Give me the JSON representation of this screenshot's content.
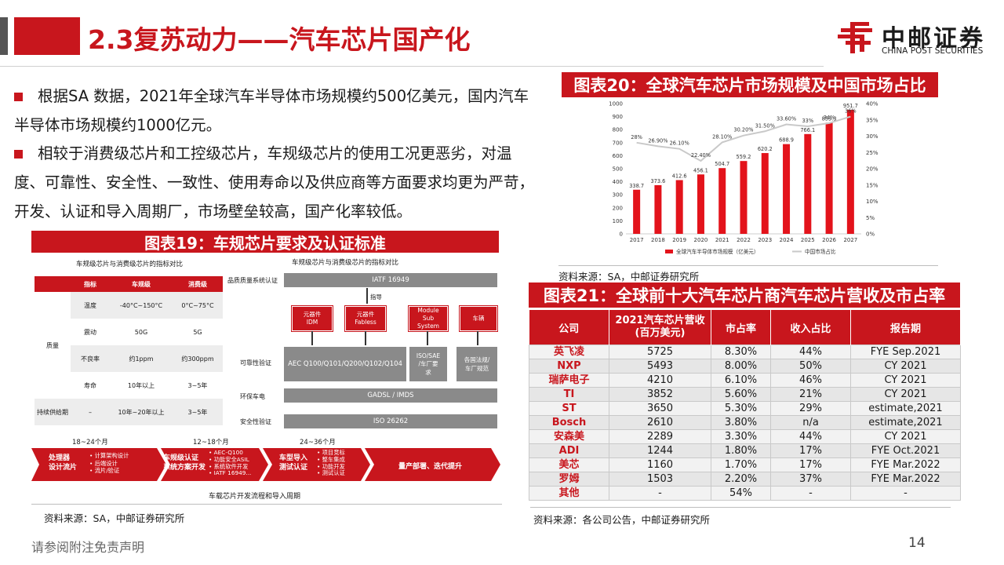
{
  "header": {
    "title": "2.3复苏动力——汽车芯片国产化",
    "logo_cn": "中邮证券",
    "logo_en": "CHINA POST SECURITIES"
  },
  "bullets": [
    "根据SA 数据，2021年全球汽车半导体市场规模约500亿美元，国内汽车半导体市场规模约1000亿元。",
    "相较于消费级芯片和工控级芯片，车规级芯片的使用工况更恶劣，对温度、可靠性、安全性、一致性、使用寿命以及供应商等方面要求均更为严苛，开发、认证和导入周期厂，市场壁垒较高，国产化率较低。"
  ],
  "fig19": {
    "title": "图表19：车规芯片要求及认证标准",
    "table_caption": "车规级芯片与消费级芯片的指标对比",
    "table_headers": [
      "指标",
      "车规级",
      "消费级"
    ],
    "quality_label": "质量",
    "supply_label": "持续供给期",
    "rows": [
      {
        "metric": "温度",
        "auto": "-40°C~150°C",
        "consumer": "0°C~75°C"
      },
      {
        "metric": "震动",
        "auto": "50G",
        "consumer": "5G"
      },
      {
        "metric": "不良率",
        "auto": "约1ppm",
        "consumer": "约300ppm"
      },
      {
        "metric": "寿命",
        "auto": "10年以上",
        "consumer": "3~5年"
      },
      {
        "metric": "–",
        "auto": "10年~20年以上",
        "consumer": "3~5年"
      }
    ],
    "diagram_caption": "车规级芯片与消费级芯片的指标对比",
    "diagram": {
      "label_quality_sys": "品质质量系统认证",
      "iatf": "IATF 16949",
      "guide": "指导",
      "idm": "元器件\nIDM",
      "fabless": "元器件\nFabless",
      "module": "Module\nSub\nSystem",
      "vehicle": "车辆",
      "label_reliability": "可靠性验证",
      "aec": "AEC Q100/Q101/Q200/Q102/Q104",
      "iso_sae": "ISO/SAE\n/车厂要\n求",
      "local_regs": "各国法规/\n车厂规范",
      "label_env": "环保车电",
      "gadsl": "GADSL / IMDS",
      "label_safety": "安全性验证",
      "iso26262": "ISO 26262"
    },
    "timeline": {
      "p1": "18~24个月",
      "p2": "12~18个月",
      "p3": "24~36个月",
      "s1": "处理器\n设计流片",
      "s1_items": [
        "• 计算架构设计",
        "• 后端设计",
        "• 流片/验证"
      ],
      "s2": "车规级认证\n系统方案开发",
      "s2_items": [
        "• AEC-Q100",
        "• 功能安全ASIL",
        "• 系统软件开发",
        "• IATF 16949..."
      ],
      "s3": "车型导入\n测试认证",
      "s3_items": [
        "• 项目竞标",
        "• 整车集成",
        "• 功能开发",
        "• 测试认证"
      ],
      "s4": "量产部署、迭代提升",
      "caption": "车载芯片开发流程和导入周期"
    },
    "source": "资料来源：SA，中邮证券研究所"
  },
  "fig20": {
    "title": "图表20：全球汽车芯片市场规模及中国市场占比",
    "source": "资料来源：SA，中邮证券研究所"
  },
  "chart_data": {
    "type": "bar",
    "categories": [
      "2017",
      "2018",
      "2019",
      "2020",
      "2021",
      "2022",
      "2023",
      "2024",
      "2025",
      "2026",
      "2027"
    ],
    "series": [
      {
        "name": "全球汽车半导体市场规模（亿美元）",
        "type": "bar",
        "axis": "left",
        "values": [
          338.7,
          373.6,
          412.6,
          456.1,
          504.7,
          559.2,
          620.2,
          688.9,
          766.1,
          853.3,
          951.7
        ],
        "labels": [
          "338.7",
          "373.6",
          "412.6",
          "456.1",
          "504.7",
          "559.2",
          "620.2",
          "688.9",
          "766.1",
          "853.3",
          "951.7"
        ]
      },
      {
        "name": "中国市场占比",
        "type": "line",
        "axis": "right",
        "values": [
          28,
          26.9,
          26.1,
          22.4,
          28.1,
          30.2,
          31.5,
          33.6,
          33,
          34,
          36
        ],
        "labels": [
          "28%",
          "26.90%",
          "26.10%",
          "22.40%",
          "28.10%",
          "30.20%",
          "31.50%",
          "33.60%",
          "33%",
          "34%",
          "36%"
        ]
      }
    ],
    "y_left": {
      "min": 0,
      "max": 1000,
      "ticks": [
        "0",
        "100",
        "200",
        "300",
        "400",
        "500",
        "600",
        "700",
        "800",
        "900",
        "1000"
      ]
    },
    "y_right": {
      "min": 0,
      "max": 40,
      "ticks": [
        "0%",
        "5%",
        "10%",
        "15%",
        "20%",
        "25%",
        "30%",
        "35%",
        "40%"
      ]
    },
    "legend": [
      "全球汽车半导体市场规模（亿美元）",
      "中国市场占比"
    ],
    "colors": {
      "bar": "#e3131b",
      "line": "#c9c9c9"
    }
  },
  "fig21": {
    "title": "图表21：全球前十大汽车芯片商汽车芯片营收及市占率",
    "headers": [
      "公司",
      "2021汽车芯片营收\n(百万美元)",
      "市占率",
      "收入占比",
      "报告期"
    ],
    "rows": [
      [
        "英飞凌",
        "5725",
        "8.30%",
        "44%",
        "FYE Sep.2021"
      ],
      [
        "NXP",
        "5493",
        "8.00%",
        "50%",
        "CY 2021"
      ],
      [
        "瑞萨电子",
        "4210",
        "6.10%",
        "46%",
        "CY 2021"
      ],
      [
        "TI",
        "3852",
        "5.60%",
        "21%",
        "CY 2021"
      ],
      [
        "ST",
        "3650",
        "5.30%",
        "29%",
        "estimate,2021"
      ],
      [
        "Bosch",
        "2610",
        "3.80%",
        "n/a",
        "estimate,2021"
      ],
      [
        "安森美",
        "2289",
        "3.30%",
        "44%",
        "CY 2021"
      ],
      [
        "ADI",
        "1244",
        "1.80%",
        "17%",
        "FYE Oct.2021"
      ],
      [
        "美芯",
        "1160",
        "1.70%",
        "17%",
        "FYE Mar.2022"
      ],
      [
        "罗姆",
        "1503",
        "2.20%",
        "37%",
        "FYE Mar.2022"
      ],
      [
        "其他",
        "-",
        "54%",
        "-",
        "-"
      ]
    ],
    "source": "资料来源：各公司公告，中邮证券研究所"
  },
  "footer": {
    "disclaimer": "请参阅附注免责声明",
    "page": "14"
  }
}
